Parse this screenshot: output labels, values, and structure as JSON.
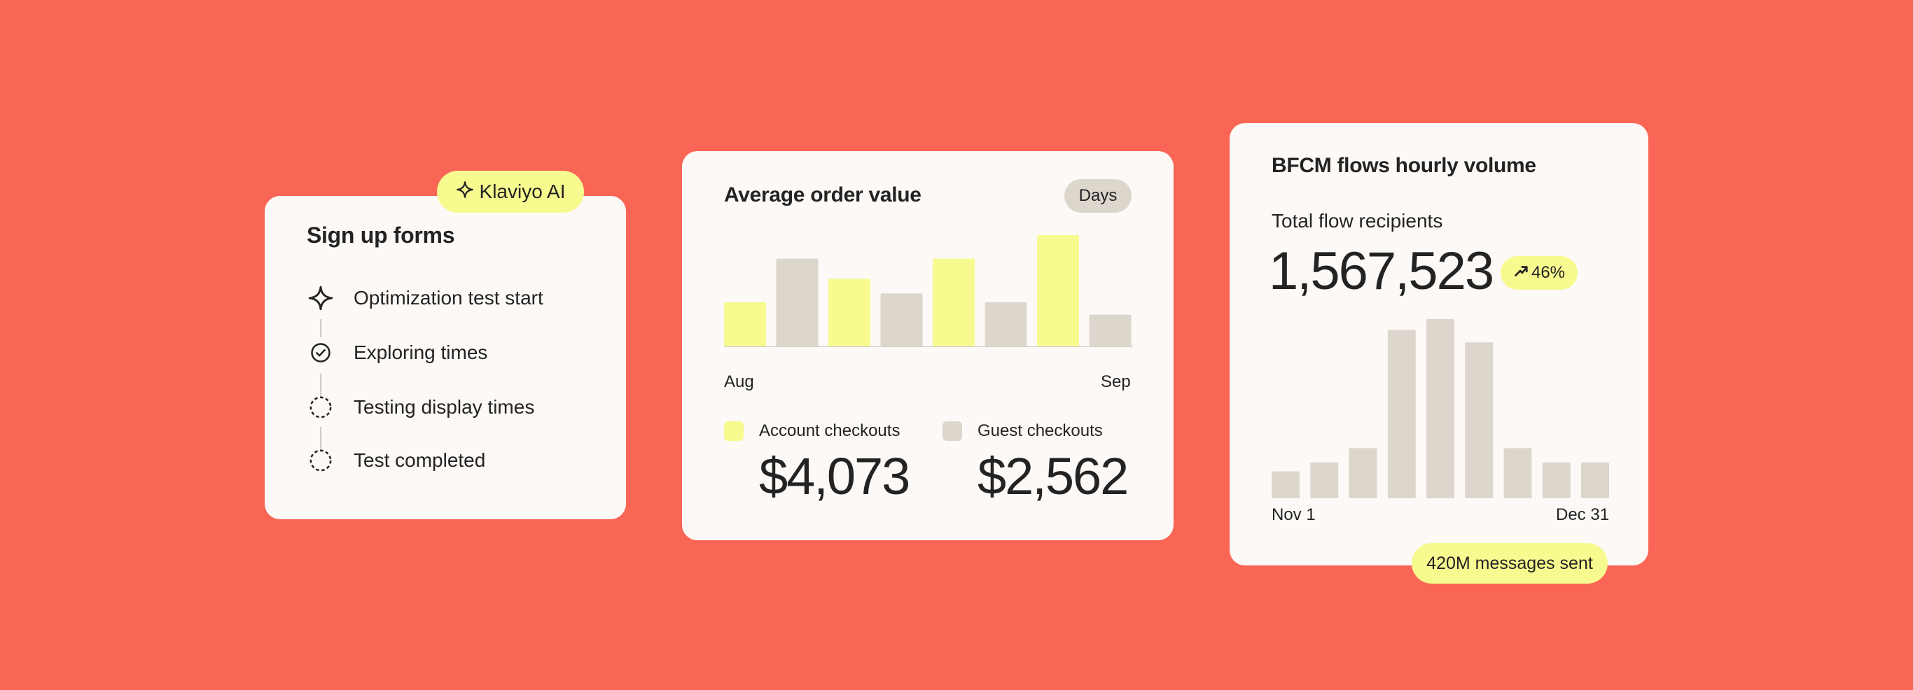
{
  "colors": {
    "background": "#F96656",
    "card": "#FCF9F6",
    "accent_yellow": "#F7FA8F",
    "neutral_bar": "#DCD6CD",
    "text": "#232323"
  },
  "signup_card": {
    "badge_icon": "sparkle-icon",
    "badge_label": "Klaviyo AI",
    "title": "Sign up forms",
    "steps": [
      {
        "label": "Optimization test start",
        "icon": "sparkle-icon",
        "status": "start"
      },
      {
        "label": "Exploring times",
        "icon": "check-circle-icon",
        "status": "done"
      },
      {
        "label": "Testing display times",
        "icon": "dashed-circle-icon",
        "status": "pending"
      },
      {
        "label": "Test completed",
        "icon": "dashed-circle-icon",
        "status": "pending"
      }
    ]
  },
  "aov_card": {
    "title": "Average order value",
    "period_chip": "Days",
    "x_start": "Aug",
    "x_end": "Sep",
    "legend": [
      {
        "label": "Account checkouts",
        "color": "#F7FA8F",
        "value": "$4,073"
      },
      {
        "label": "Guest checkouts",
        "color": "#DCD6CD",
        "value": "$2,562"
      }
    ]
  },
  "bfcm_card": {
    "title": "BFCM flows hourly volume",
    "subtitle": "Total flow recipients",
    "total": "1,567,523",
    "growth": "46%",
    "growth_icon": "trend-up-arrow-icon",
    "x_start": "Nov 1",
    "x_end": "Dec 31",
    "footer_badge": "420M messages sent"
  },
  "chart_data": [
    {
      "type": "bar",
      "title": "Average order value",
      "xlabel": "",
      "ylabel": "",
      "x_tick_labels": [
        "Aug",
        "Sep"
      ],
      "categories": [
        "1",
        "2",
        "3",
        "4",
        "5",
        "6",
        "7",
        "8"
      ],
      "values": [
        0.4,
        0.79,
        0.61,
        0.48,
        0.79,
        0.4,
        1.0,
        0.29
      ],
      "bar_colors": [
        "#F7FA8F",
        "#DCD6CD",
        "#F7FA8F",
        "#DCD6CD",
        "#F7FA8F",
        "#DCD6CD",
        "#F7FA8F",
        "#DCD6CD"
      ],
      "ylim": [
        0,
        1
      ],
      "grid": false
    },
    {
      "type": "bar",
      "title": "BFCM flows hourly volume",
      "xlabel": "",
      "ylabel": "",
      "x_tick_labels": [
        "Nov 1",
        "Dec 31"
      ],
      "categories": [
        "1",
        "2",
        "3",
        "4",
        "5",
        "6",
        "7",
        "8",
        "9"
      ],
      "values": [
        0.15,
        0.2,
        0.28,
        0.94,
        1.0,
        0.87,
        0.28,
        0.2,
        0.2
      ],
      "bar_colors": [
        "#DCD6CD"
      ],
      "ylim": [
        0,
        1
      ],
      "grid": false
    }
  ]
}
